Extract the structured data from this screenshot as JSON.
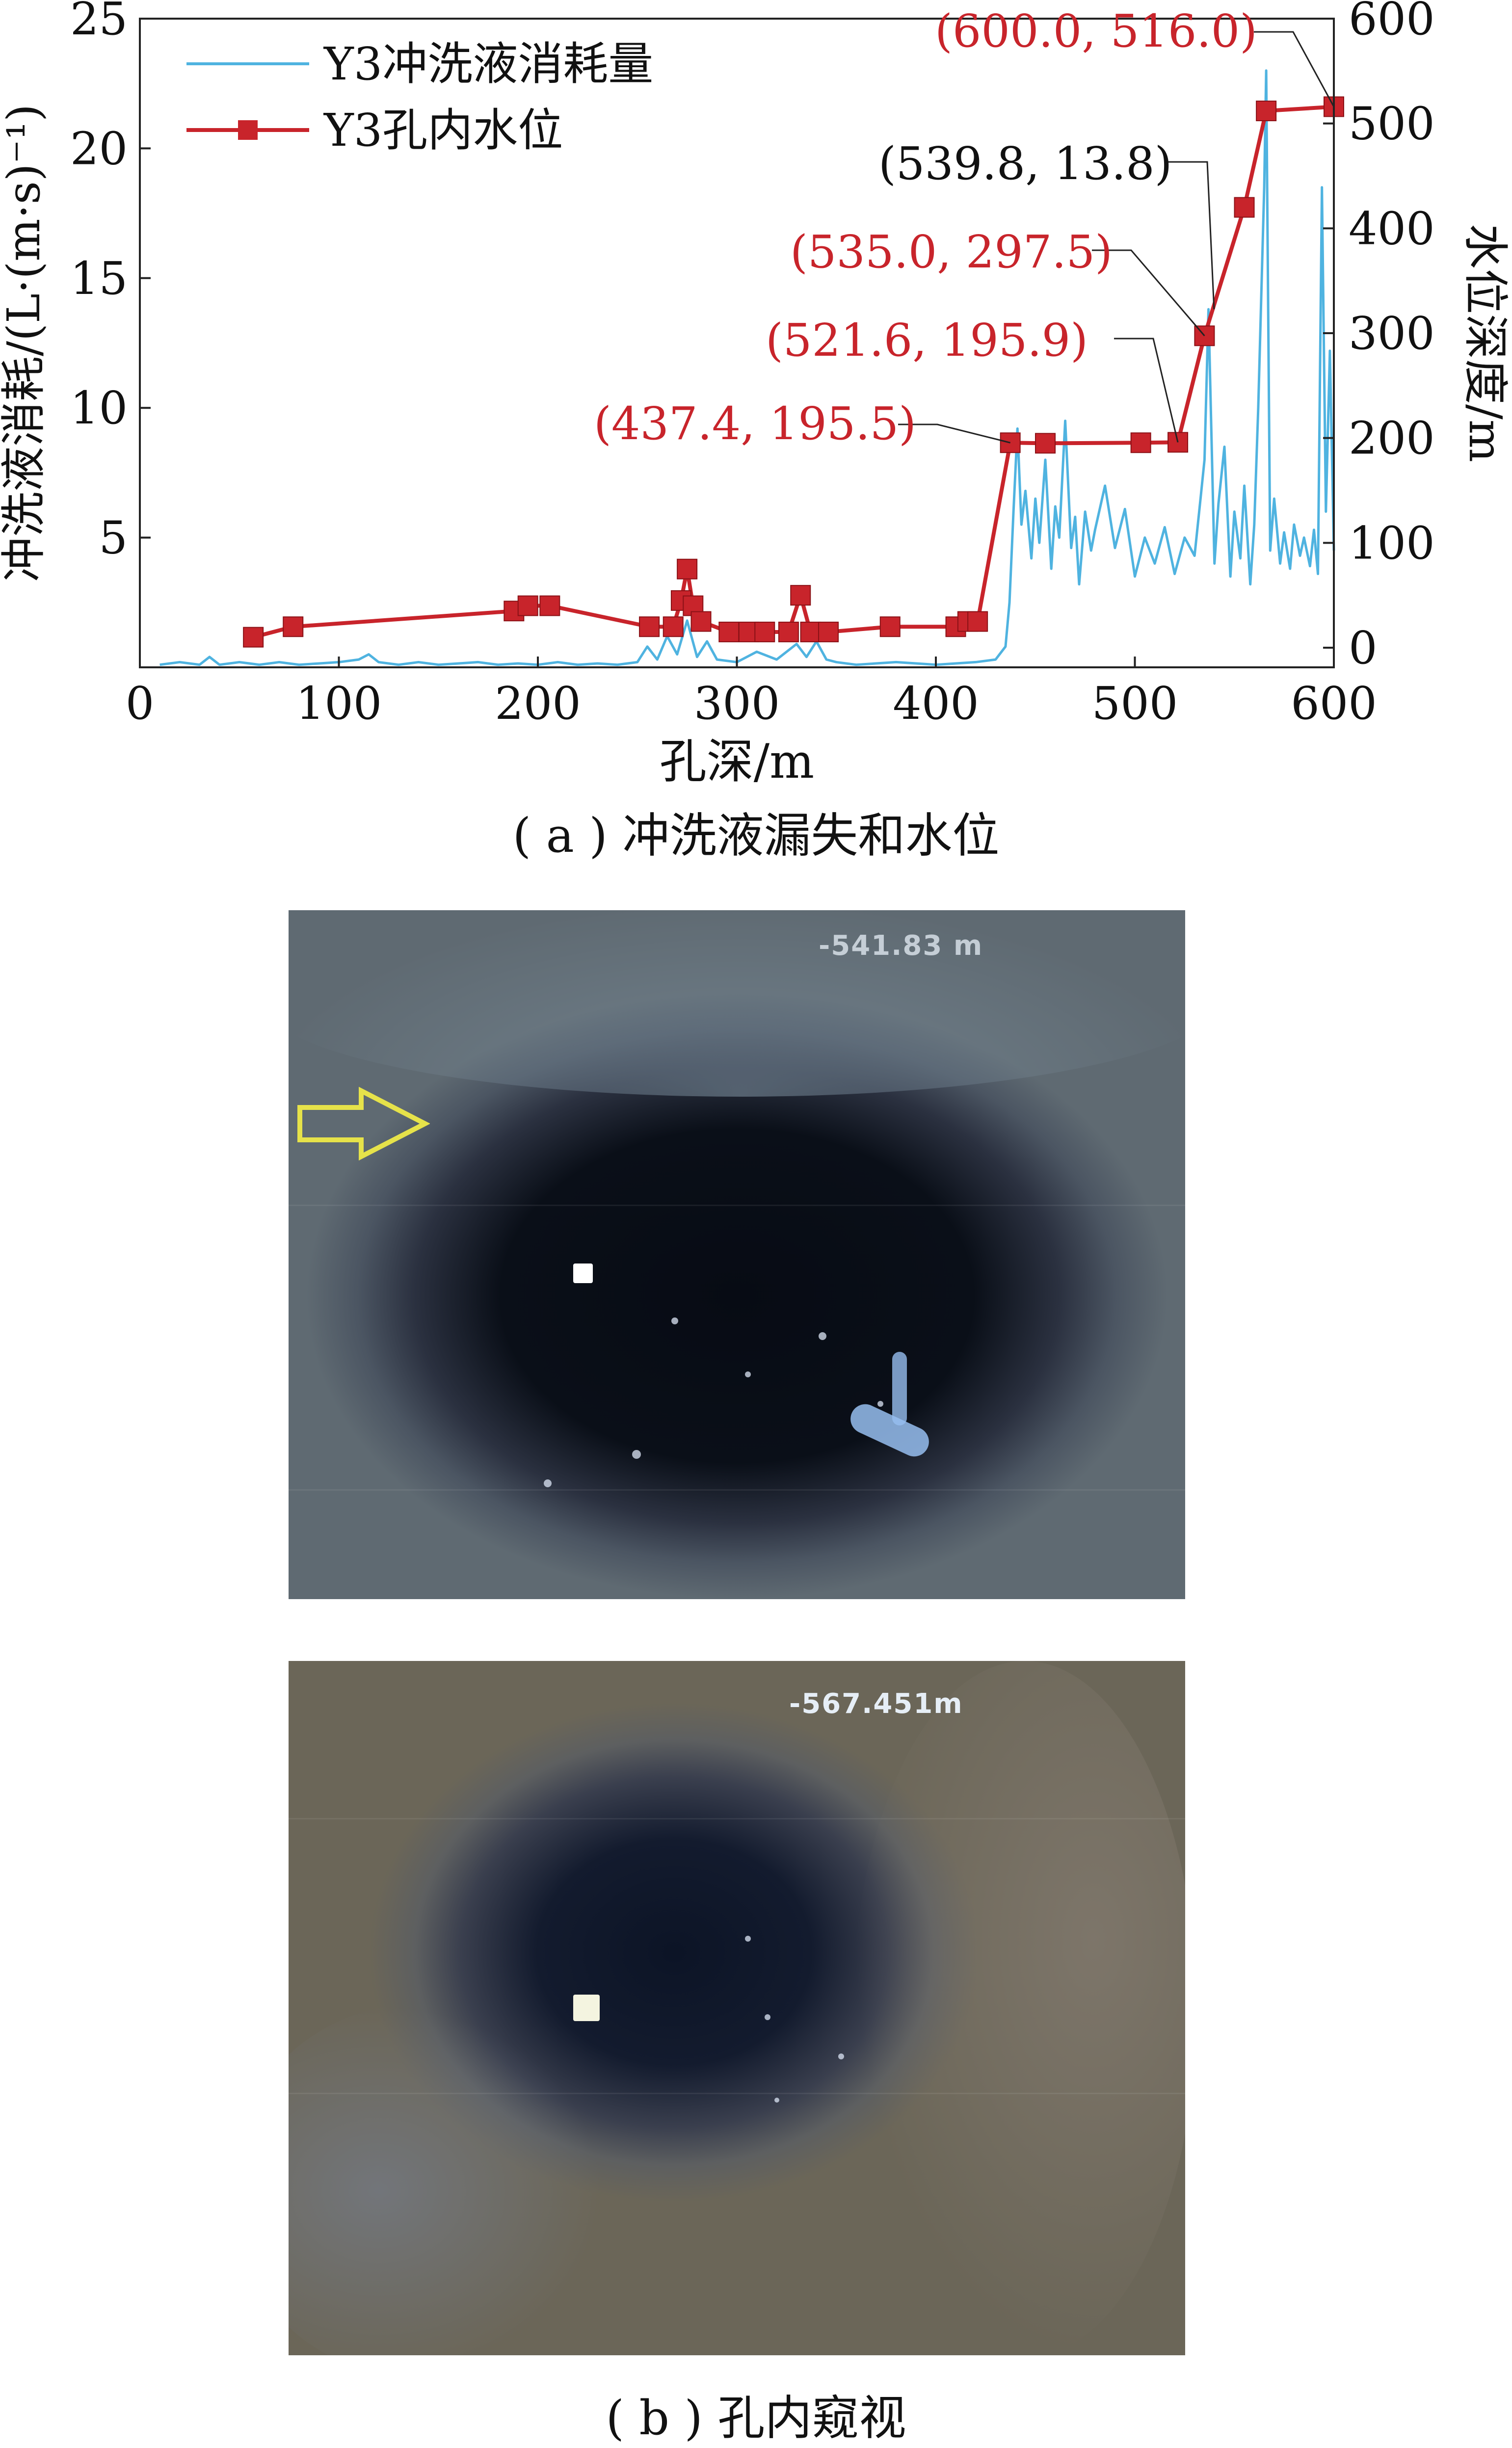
{
  "chart_data": {
    "type": "line",
    "xlabel": "孔深/m",
    "ylabel_left": "冲洗液消耗/(L·(m·s)⁻¹)",
    "ylabel_right": "水位深度/m",
    "xlim": [
      0,
      600
    ],
    "ylim_left": [
      0,
      25
    ],
    "ylim_right": [
      0,
      600
    ],
    "x_ticks": [
      "0",
      "100",
      "200",
      "300",
      "400",
      "500",
      "600"
    ],
    "y_left_ticks": [
      "25",
      "20",
      "15",
      "10",
      "5"
    ],
    "y_right_ticks": [
      "600",
      "500",
      "400",
      "300",
      "200",
      "100",
      "0"
    ],
    "legend": {
      "placement": "top-left"
    },
    "series": [
      {
        "name": "Y3冲洗液消耗量",
        "axis": "left",
        "color": "#4fb3e0",
        "x": [
          10,
          20,
          30,
          35,
          40,
          50,
          60,
          70,
          80,
          90,
          100,
          110,
          115,
          120,
          130,
          140,
          150,
          160,
          170,
          180,
          190,
          200,
          210,
          220,
          230,
          240,
          250,
          255,
          260,
          265,
          270,
          275,
          280,
          285,
          290,
          300,
          310,
          320,
          330,
          335,
          340,
          345,
          350,
          360,
          380,
          400,
          420,
          430,
          435,
          437,
          439,
          441,
          443,
          445,
          448,
          450,
          452,
          455,
          458,
          460,
          462,
          465,
          468,
          470,
          472,
          475,
          478,
          480,
          485,
          490,
          495,
          500,
          505,
          510,
          515,
          520,
          525,
          530,
          533,
          535,
          537,
          540,
          542,
          545,
          548,
          550,
          553,
          555,
          558,
          560,
          562,
          565,
          566,
          568,
          570,
          573,
          575,
          578,
          580,
          583,
          585,
          588,
          590,
          592,
          594,
          596,
          598,
          600
        ],
        "values": [
          0.1,
          0.2,
          0.1,
          0.4,
          0.1,
          0.2,
          0.1,
          0.2,
          0.1,
          0.15,
          0.2,
          0.3,
          0.5,
          0.2,
          0.1,
          0.2,
          0.1,
          0.15,
          0.2,
          0.1,
          0.15,
          0.1,
          0.2,
          0.1,
          0.15,
          0.1,
          0.2,
          0.8,
          0.3,
          1.2,
          0.5,
          1.8,
          0.4,
          1.0,
          0.3,
          0.2,
          0.6,
          0.3,
          0.9,
          0.4,
          1.0,
          0.3,
          0.2,
          0.1,
          0.2,
          0.1,
          0.2,
          0.3,
          0.8,
          2.5,
          6.0,
          9.2,
          5.5,
          6.8,
          4.2,
          6.5,
          4.8,
          8.0,
          3.8,
          6.2,
          5.0,
          9.5,
          4.6,
          5.8,
          3.2,
          6.0,
          4.5,
          5.3,
          7.0,
          4.6,
          6.1,
          3.5,
          5.0,
          4.0,
          5.4,
          3.6,
          5.0,
          4.3,
          6.5,
          8.0,
          13.8,
          4.0,
          6.3,
          8.5,
          3.5,
          6.0,
          4.2,
          7.0,
          3.2,
          5.5,
          10.0,
          18.5,
          23.0,
          4.5,
          6.5,
          4.0,
          5.2,
          3.8,
          5.5,
          4.3,
          5.0,
          3.9,
          5.3,
          3.6,
          18.5,
          6.0,
          12.2,
          4.5
        ]
      },
      {
        "name": "Y3孔内水位",
        "axis": "right",
        "color": "#c8242b",
        "marker": "square",
        "x": [
          57,
          77,
          188,
          195,
          206,
          256,
          268,
          272,
          275,
          278,
          282,
          296,
          306,
          314,
          326,
          332,
          337,
          346,
          377,
          410,
          416,
          421,
          437.4,
          455,
          503,
          521.6,
          535.0,
          555,
          566,
          600.0
        ],
        "values": [
          10,
          20,
          35,
          40,
          40,
          20,
          20,
          45,
          75,
          40,
          25,
          15,
          15,
          15,
          15,
          50,
          15,
          15,
          20,
          20,
          25,
          25,
          195.5,
          195,
          195.5,
          195.9,
          297.5,
          420,
          512,
          516.0
        ]
      }
    ],
    "annotations": [
      {
        "text": "(600.0, 516.0)",
        "color": "#c8242b",
        "x": 600.0,
        "y": 516.0,
        "axis": "right"
      },
      {
        "text": "(539.8, 13.8)",
        "color": "#111111",
        "x": 539.8,
        "y": 13.8,
        "axis": "left"
      },
      {
        "text": "(535.0, 297.5)",
        "color": "#c8242b",
        "x": 535.0,
        "y": 297.5,
        "axis": "right"
      },
      {
        "text": "(521.6, 195.9)",
        "color": "#c8242b",
        "x": 521.6,
        "y": 195.9,
        "axis": "right"
      },
      {
        "text": "(437.4, 195.5)",
        "color": "#c8242b",
        "x": 437.4,
        "y": 195.5,
        "axis": "right"
      }
    ]
  },
  "captions": {
    "a": "( a ) 冲洗液漏失和水位",
    "b": "( b ) 孔内窥视"
  },
  "photos": [
    {
      "overlay_text": "-541.83 m"
    },
    {
      "overlay_text": "-567.451m"
    }
  ]
}
